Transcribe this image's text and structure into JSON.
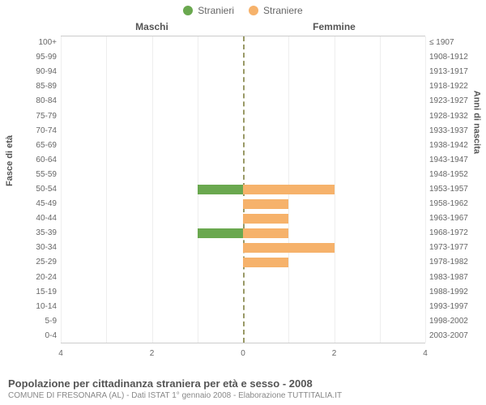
{
  "legend": {
    "series_male": {
      "label": "Stranieri",
      "color": "#6aa84f"
    },
    "series_female": {
      "label": "Straniere",
      "color": "#f6b26b"
    }
  },
  "headers": {
    "left": "Maschi",
    "right": "Femmine"
  },
  "axis_titles": {
    "left": "Fasce di età",
    "right": "Anni di nascita"
  },
  "chart": {
    "type": "bar",
    "x_max": 4,
    "x_ticks": [
      4,
      2,
      0,
      0,
      2,
      4
    ],
    "center_line_color": "#999966",
    "grid_color": "#eeeeee",
    "axis_text_color": "#666666",
    "background_color": "#ffffff",
    "rows": [
      {
        "age": "100+",
        "birth": "≤ 1907",
        "male": 0,
        "female": 0
      },
      {
        "age": "95-99",
        "birth": "1908-1912",
        "male": 0,
        "female": 0
      },
      {
        "age": "90-94",
        "birth": "1913-1917",
        "male": 0,
        "female": 0
      },
      {
        "age": "85-89",
        "birth": "1918-1922",
        "male": 0,
        "female": 0
      },
      {
        "age": "80-84",
        "birth": "1923-1927",
        "male": 0,
        "female": 0
      },
      {
        "age": "75-79",
        "birth": "1928-1932",
        "male": 0,
        "female": 0
      },
      {
        "age": "70-74",
        "birth": "1933-1937",
        "male": 0,
        "female": 0
      },
      {
        "age": "65-69",
        "birth": "1938-1942",
        "male": 0,
        "female": 0
      },
      {
        "age": "60-64",
        "birth": "1943-1947",
        "male": 0,
        "female": 0
      },
      {
        "age": "55-59",
        "birth": "1948-1952",
        "male": 0,
        "female": 0
      },
      {
        "age": "50-54",
        "birth": "1953-1957",
        "male": 1,
        "female": 2
      },
      {
        "age": "45-49",
        "birth": "1958-1962",
        "male": 0,
        "female": 1
      },
      {
        "age": "40-44",
        "birth": "1963-1967",
        "male": 0,
        "female": 1
      },
      {
        "age": "35-39",
        "birth": "1968-1972",
        "male": 1,
        "female": 1
      },
      {
        "age": "30-34",
        "birth": "1973-1977",
        "male": 0,
        "female": 2
      },
      {
        "age": "25-29",
        "birth": "1978-1982",
        "male": 0,
        "female": 1
      },
      {
        "age": "20-24",
        "birth": "1983-1987",
        "male": 0,
        "female": 0
      },
      {
        "age": "15-19",
        "birth": "1988-1992",
        "male": 0,
        "female": 0
      },
      {
        "age": "10-14",
        "birth": "1993-1997",
        "male": 0,
        "female": 0
      },
      {
        "age": "5-9",
        "birth": "1998-2002",
        "male": 0,
        "female": 0
      },
      {
        "age": "0-4",
        "birth": "2003-2007",
        "male": 0,
        "female": 0
      }
    ]
  },
  "caption": {
    "title": "Popolazione per cittadinanza straniera per età e sesso - 2008",
    "subtitle": "COMUNE DI FRESONARA (AL) - Dati ISTAT 1° gennaio 2008 - Elaborazione TUTTITALIA.IT"
  }
}
